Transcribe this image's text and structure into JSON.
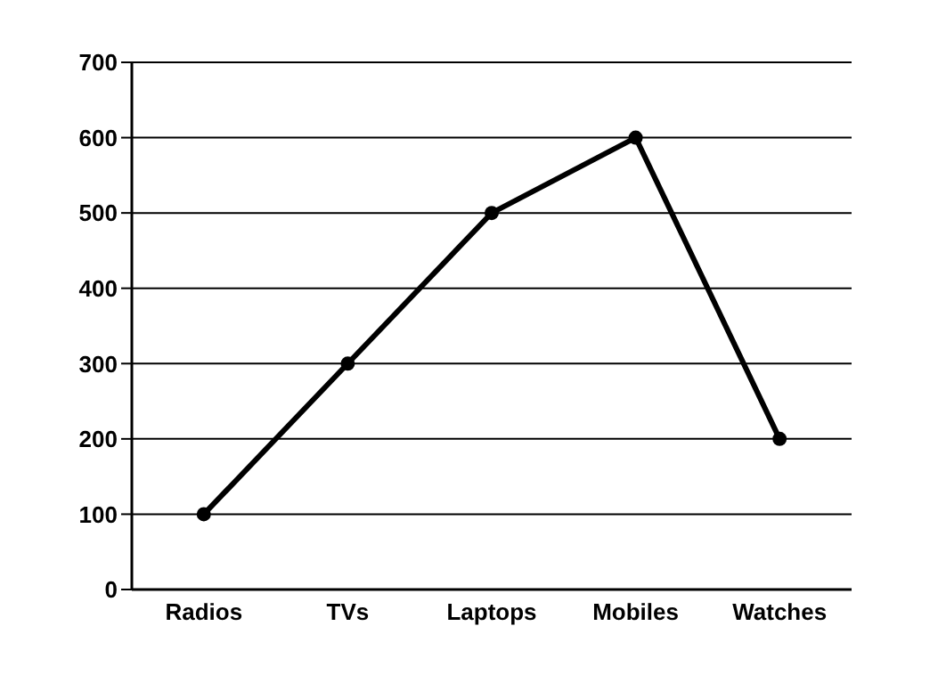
{
  "chart_data": {
    "type": "line",
    "categories": [
      "Radios",
      "TVs",
      "Laptops",
      "Mobiles",
      "Watches"
    ],
    "series": [
      {
        "color": "#000000",
        "values": [
          100,
          300,
          500,
          600,
          200
        ]
      }
    ],
    "ylim": [
      0,
      700
    ],
    "yticks": [
      0,
      100,
      200,
      300,
      400,
      500,
      600,
      700
    ],
    "grid": "y",
    "legend": false,
    "marker": "circle",
    "line_style": "solid"
  }
}
